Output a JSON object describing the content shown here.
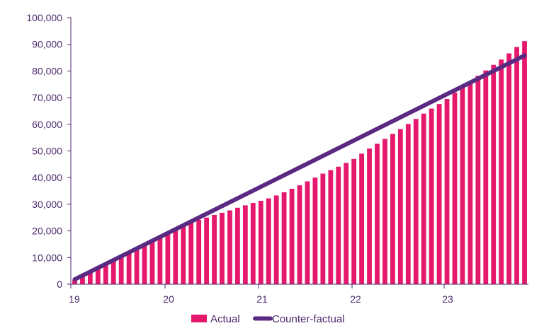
{
  "chart_data": {
    "type": "bar",
    "title": "",
    "xlabel": "",
    "ylabel": "",
    "ylim": [
      0,
      100000
    ],
    "yticks": [
      0,
      10000,
      20000,
      30000,
      40000,
      50000,
      60000,
      70000,
      80000,
      90000,
      100000
    ],
    "ytick_labels": [
      "0",
      "10,000",
      "20,000",
      "30,000",
      "40,000",
      "50,000",
      "60,000",
      "70,000",
      "80,000",
      "90,000",
      "100,000"
    ],
    "xticks": [
      "19",
      "20",
      "21",
      "22",
      "23"
    ],
    "grid": false,
    "legend_position": "bottom",
    "colors": {
      "actual": "#e6186e",
      "counterfactual": "#5a2a82",
      "axis": "#4a2a6b"
    },
    "series": [
      {
        "name": "Actual",
        "kind": "bar",
        "values": [
          1500,
          3000,
          4500,
          6000,
          7500,
          9000,
          10500,
          12000,
          13500,
          15000,
          16500,
          18000,
          19500,
          21000,
          22500,
          23300,
          24200,
          25000,
          26000,
          26800,
          27700,
          28700,
          29600,
          30500,
          31300,
          32200,
          33300,
          34500,
          35800,
          37100,
          38600,
          40000,
          41500,
          42800,
          44100,
          45500,
          47000,
          49000,
          50900,
          52700,
          54500,
          56400,
          58200,
          60100,
          62000,
          64000,
          65900,
          67600,
          69500,
          71900,
          73900,
          76100,
          78200,
          80200,
          82300,
          84300,
          86600,
          89000,
          91200
        ]
      },
      {
        "name": "Counter-factual",
        "kind": "line",
        "start": 1800,
        "end": 85800
      }
    ]
  }
}
